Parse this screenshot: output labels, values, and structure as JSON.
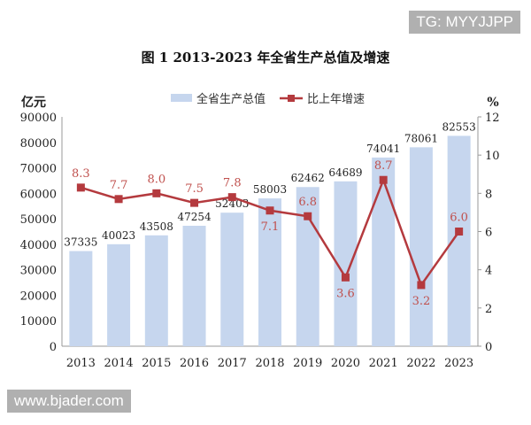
{
  "watermarks": {
    "top_right": "TG: MYYJJPP",
    "bottom_left": "www.bjader.com"
  },
  "chart_data": {
    "type": "bar+line",
    "title": "图 1   2013-2023 年全省生产总值及增速",
    "categories": [
      "2013",
      "2014",
      "2015",
      "2016",
      "2017",
      "2018",
      "2019",
      "2020",
      "2021",
      "2022",
      "2023"
    ],
    "series": [
      {
        "name": "全省生产总值",
        "type": "bar",
        "axis": "left",
        "color": "#c6d6ee",
        "values": [
          37335,
          40023,
          43508,
          47254,
          52403,
          58003,
          62462,
          64689,
          74041,
          78061,
          82553
        ]
      },
      {
        "name": "比上年增速",
        "type": "line",
        "axis": "right",
        "color": "#b43a3e",
        "values": [
          8.3,
          7.7,
          8.0,
          7.5,
          7.8,
          7.1,
          6.8,
          3.6,
          8.7,
          3.2,
          6.0
        ]
      }
    ],
    "left_axis": {
      "label": "亿元",
      "range": [
        0,
        90000
      ],
      "ticks": [
        0,
        10000,
        20000,
        30000,
        40000,
        50000,
        60000,
        70000,
        80000,
        90000
      ]
    },
    "right_axis": {
      "label": "%",
      "range": [
        0,
        12
      ],
      "ticks": [
        0,
        2,
        4,
        6,
        8,
        10,
        12
      ]
    },
    "legend_placement": "top-center",
    "grid": false
  }
}
